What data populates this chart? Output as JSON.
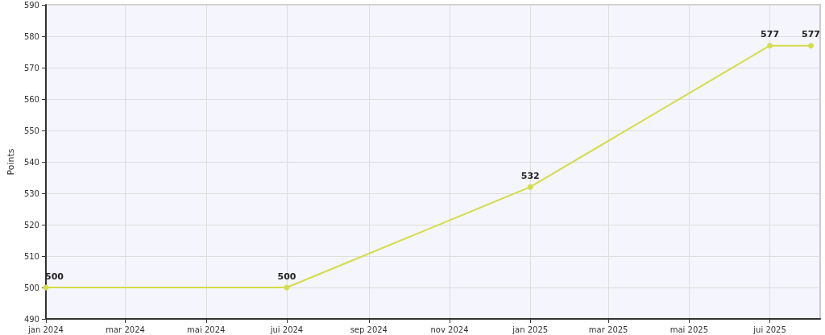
{
  "chart_data": {
    "type": "line",
    "ylabel": "Points",
    "x": [
      "2024-01-01",
      "2024-07-01",
      "2025-01-01",
      "2025-07-01",
      "2025-08-01"
    ],
    "series": [
      {
        "color": "#d4dc4a",
        "values": [
          500,
          500,
          532,
          577,
          577
        ]
      }
    ],
    "xlim": [
      "2024-01-01",
      "2025-08-08"
    ],
    "xticks": [
      {
        "value": "2024-01-01",
        "label": "jan 2024"
      },
      {
        "value": "2024-03-01",
        "label": "mar 2024"
      },
      {
        "value": "2024-05-01",
        "label": "mai 2024"
      },
      {
        "value": "2024-07-01",
        "label": "jui 2024"
      },
      {
        "value": "2024-09-01",
        "label": "sep 2024"
      },
      {
        "value": "2024-11-01",
        "label": "nov 2024"
      },
      {
        "value": "2025-01-01",
        "label": "jan 2025"
      },
      {
        "value": "2025-03-01",
        "label": "mar 2025"
      },
      {
        "value": "2025-05-01",
        "label": "mai 2025"
      },
      {
        "value": "2025-07-01",
        "label": "jui 2025"
      }
    ],
    "ylim": [
      490,
      590
    ],
    "yticks": [
      490,
      500,
      510,
      520,
      530,
      540,
      550,
      560,
      570,
      580,
      590
    ],
    "grid": true,
    "marker": "circle",
    "line_style": "solid",
    "data_labels": true
  }
}
